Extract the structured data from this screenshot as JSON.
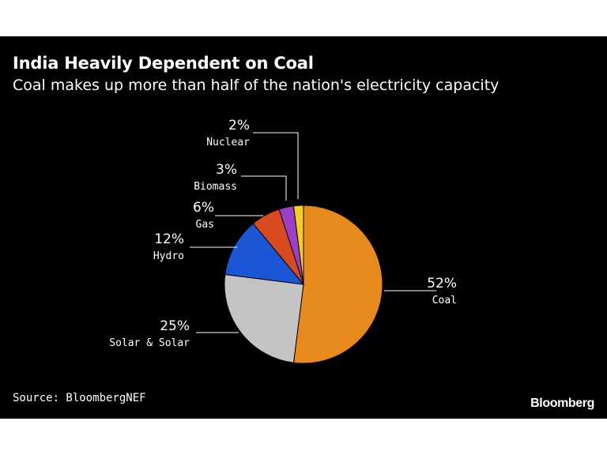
{
  "header": {
    "title": "India Heavily Dependent on Coal",
    "subtitle": "Coal makes up more than half of the nation's electricity capacity"
  },
  "chart_data": {
    "type": "pie",
    "title": "India Heavily Dependent on Coal",
    "subtitle": "Coal makes up more than half of the nation's electricity capacity",
    "slices": [
      {
        "label": "Coal",
        "value": 52,
        "value_label": "52%",
        "color": "#e8891c"
      },
      {
        "label": "Solar & Solar",
        "value": 25,
        "value_label": "25%",
        "color": "#c4c4c4"
      },
      {
        "label": "Hydro",
        "value": 12,
        "value_label": "12%",
        "color": "#1a56d6"
      },
      {
        "label": "Gas",
        "value": 6,
        "value_label": "6%",
        "color": "#d94a1e"
      },
      {
        "label": "Biomass",
        "value": 3,
        "value_label": "3%",
        "color": "#9b3fc9"
      },
      {
        "label": "Nuclear",
        "value": 2,
        "value_label": "2%",
        "color": "#f2cf1d"
      }
    ]
  },
  "footer": {
    "source": "Source: BloombergNEF",
    "brand": "Bloomberg"
  }
}
